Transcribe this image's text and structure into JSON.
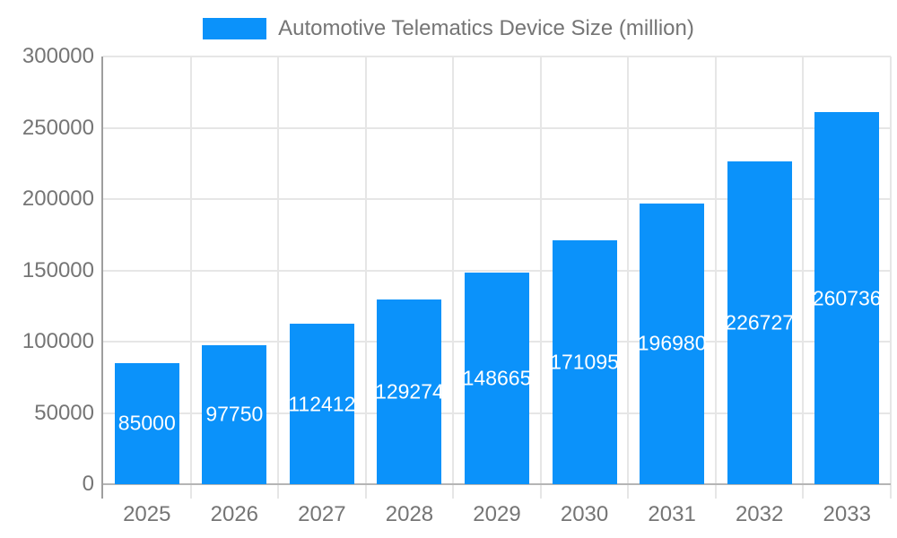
{
  "chart_data": {
    "type": "bar",
    "legend_label": "Automotive Telematics Device Size (million)",
    "legend_position": "top",
    "categories": [
      "2025",
      "2026",
      "2027",
      "2028",
      "2029",
      "2030",
      "2031",
      "2032",
      "2033"
    ],
    "values": [
      85000,
      97750,
      112412,
      129274,
      148665,
      171095,
      196980,
      226727,
      260736
    ],
    "bar_labels": [
      "85000",
      "97750",
      "112412",
      "129274",
      "148665",
      "171095",
      "196980",
      "226727",
      "260736"
    ],
    "xlabel": "",
    "ylabel": "",
    "ylim": [
      0,
      300000
    ],
    "yticks": [
      0,
      50000,
      100000,
      150000,
      200000,
      250000,
      300000
    ],
    "ytick_labels": [
      "0",
      "50000",
      "100000",
      "150000",
      "200000",
      "250000",
      "300000"
    ],
    "grid": true,
    "colors": {
      "bar": "#0b92fa",
      "bar_label_text": "#ffffff",
      "axis_text": "#757575",
      "legend_text": "#757575",
      "gridline": "#e6e6e6",
      "baseline": "#b5b5b5",
      "axis_line": "#9e9e9e",
      "background": "#ffffff"
    }
  }
}
